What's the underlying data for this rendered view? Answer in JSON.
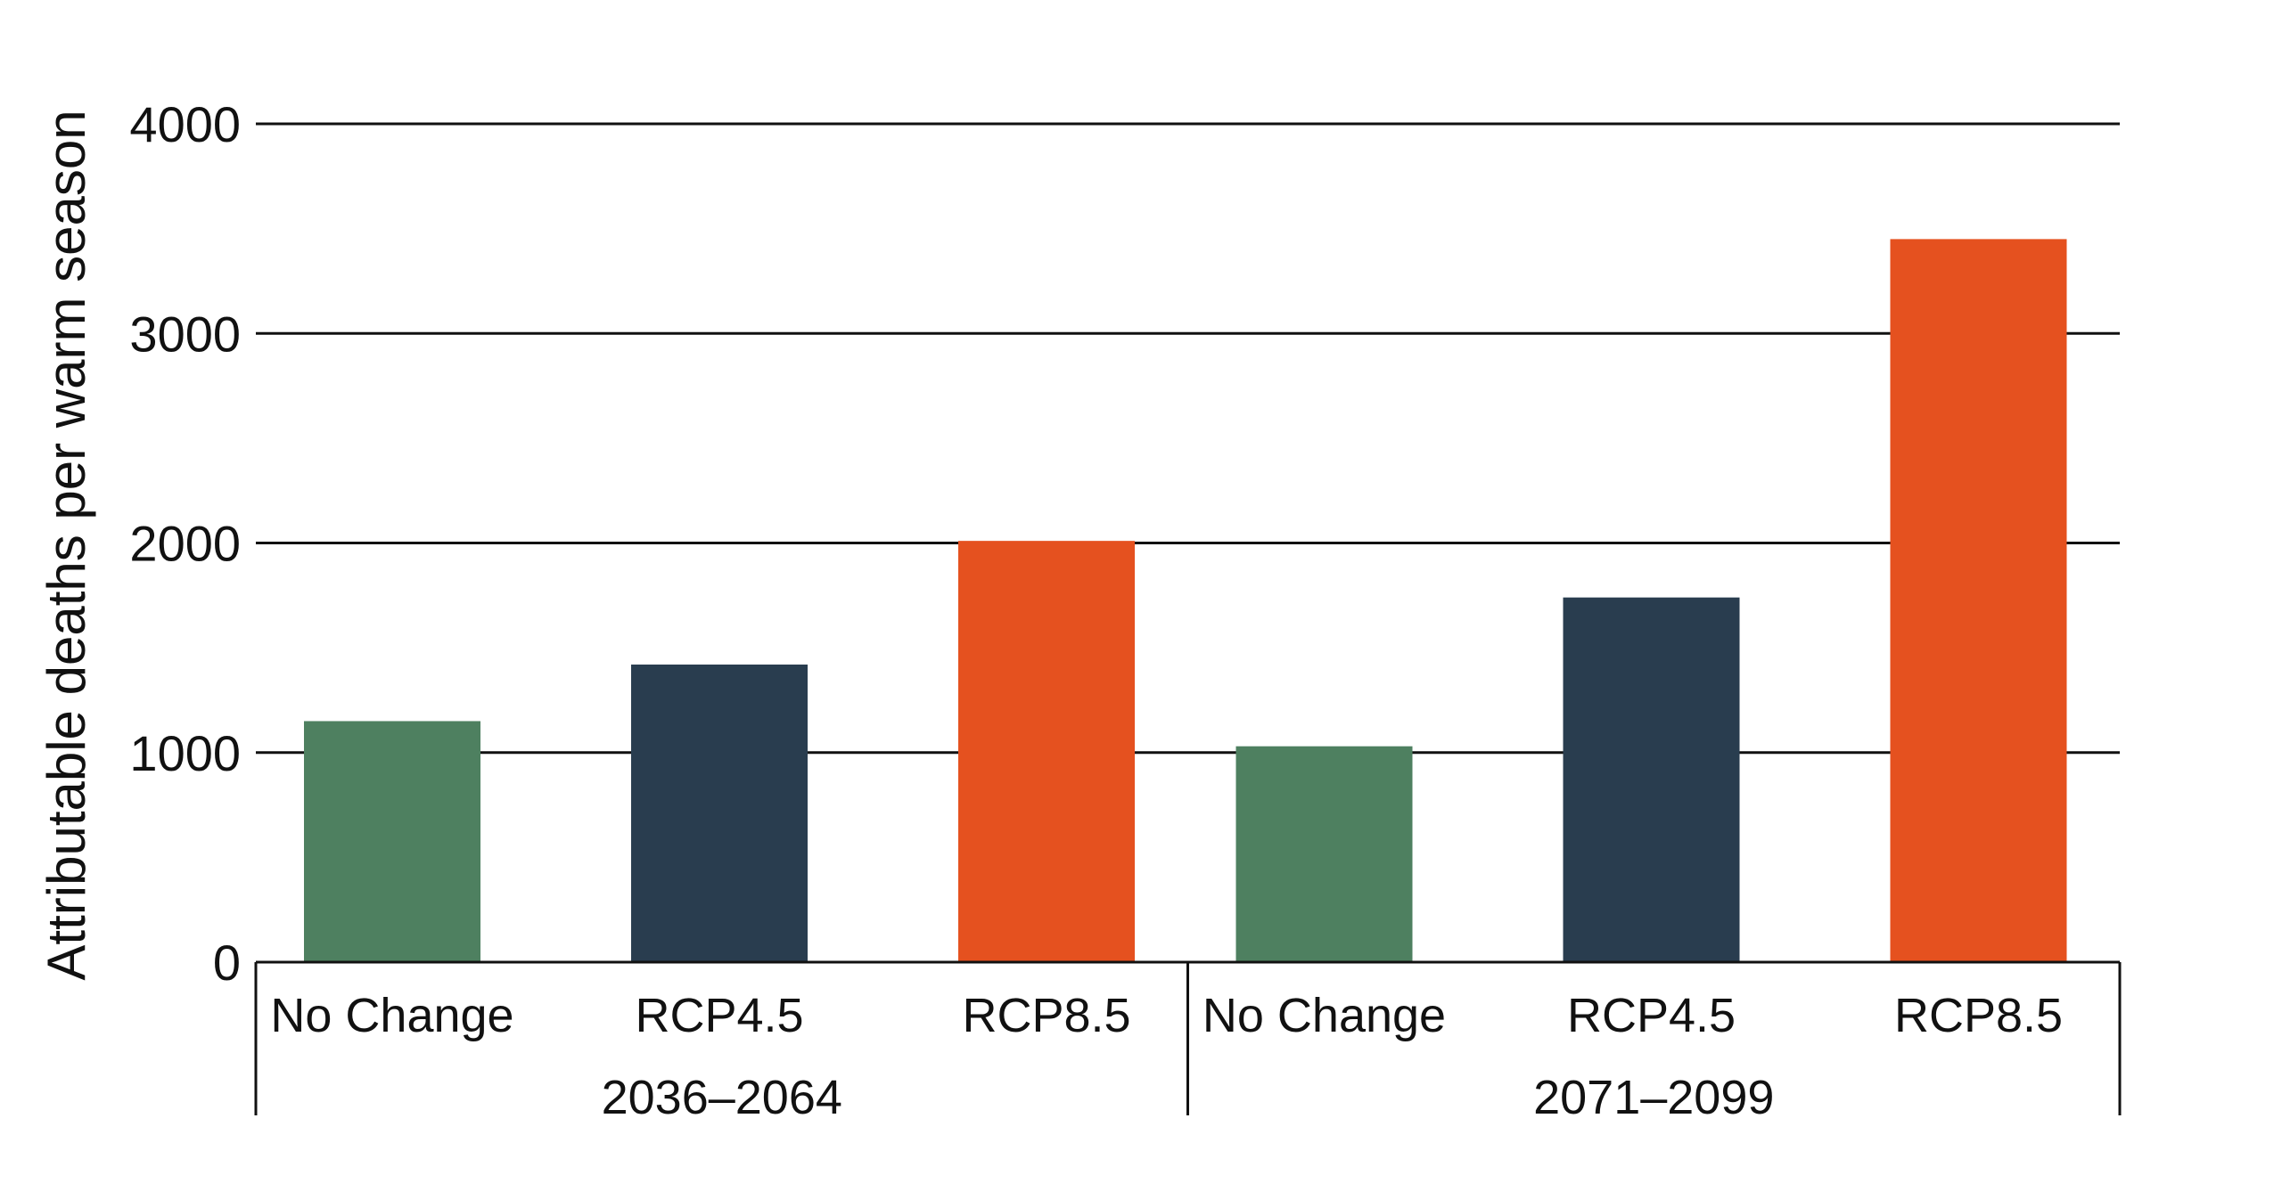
{
  "chart_data": {
    "type": "bar",
    "ylabel": "Attributable deaths per warm season",
    "ylim": [
      0,
      4000
    ],
    "yticks": [
      0,
      1000,
      2000,
      3000,
      4000
    ],
    "ytick_labels": [
      "0",
      "1000",
      "2000",
      "3000",
      "4000"
    ],
    "grid": "horizontal",
    "groups": [
      {
        "label": "2036–2064",
        "categories": [
          "No Change",
          "RCP4.5",
          "RCP8.5"
        ],
        "values": [
          1150,
          1420,
          2010
        ]
      },
      {
        "label": "2071–2099",
        "categories": [
          "No Change",
          "RCP4.5",
          "RCP8.5"
        ],
        "values": [
          1030,
          1740,
          3450
        ]
      }
    ],
    "scenario_colors": {
      "No Change": "#4e8060",
      "RCP4.5": "#293d4f",
      "RCP8.5": "#e5511f"
    }
  }
}
